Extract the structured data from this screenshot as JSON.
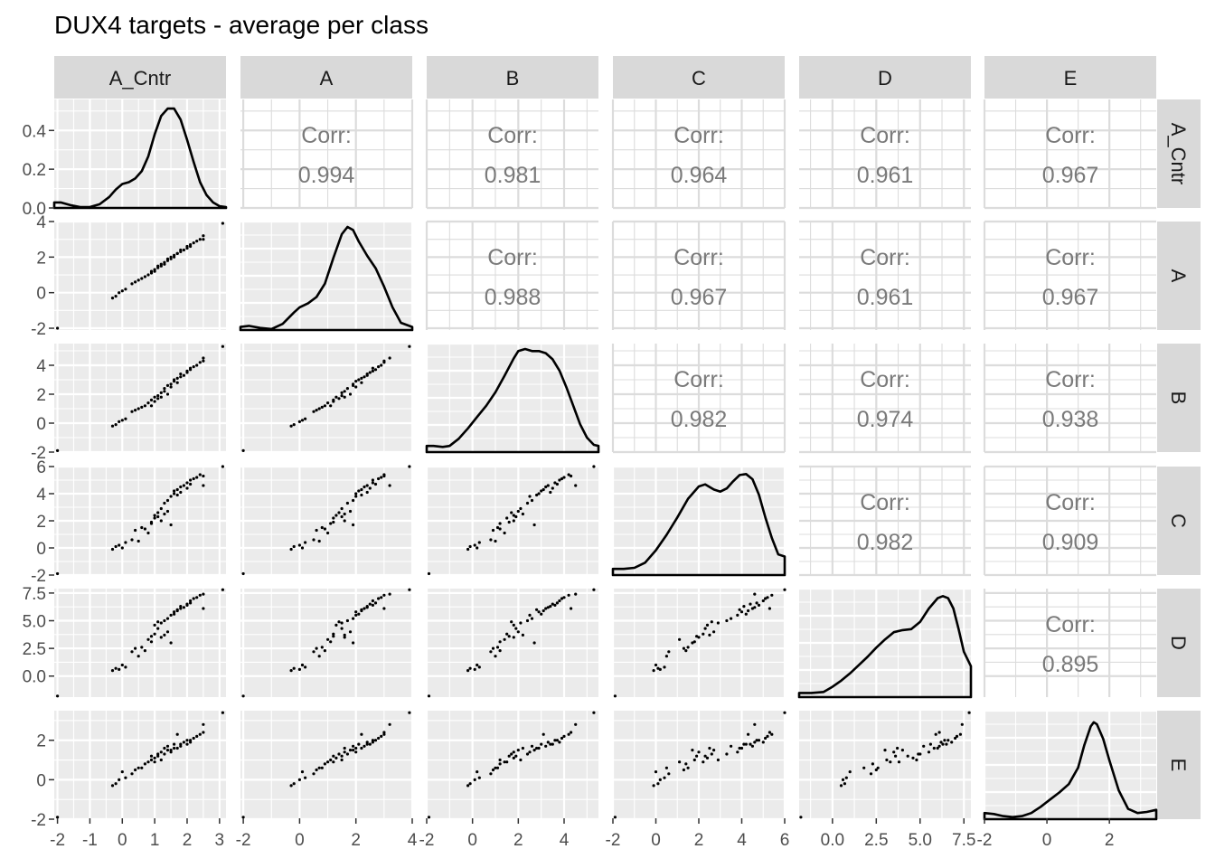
{
  "chart_data": {
    "type": "scatter",
    "title": "DUX4 targets - average per class",
    "variables": [
      "A_Cntr",
      "A",
      "B",
      "C",
      "D",
      "E"
    ],
    "colors": {
      "panel": "#ebebeb",
      "strip": "#d9d9d9",
      "grid": "#ffffff",
      "corr_text": "#7a7a7a",
      "ink": "#000000",
      "tick_text": "#4d4d4d"
    },
    "corr_label": "Corr:",
    "correlations": [
      {
        "row": "A_Cntr",
        "col": "A",
        "value": "0.994"
      },
      {
        "row": "A_Cntr",
        "col": "B",
        "value": "0.981"
      },
      {
        "row": "A_Cntr",
        "col": "C",
        "value": "0.964"
      },
      {
        "row": "A_Cntr",
        "col": "D",
        "value": "0.961"
      },
      {
        "row": "A_Cntr",
        "col": "E",
        "value": "0.967"
      },
      {
        "row": "A",
        "col": "B",
        "value": "0.988"
      },
      {
        "row": "A",
        "col": "C",
        "value": "0.967"
      },
      {
        "row": "A",
        "col": "D",
        "value": "0.961"
      },
      {
        "row": "A",
        "col": "E",
        "value": "0.967"
      },
      {
        "row": "B",
        "col": "C",
        "value": "0.982"
      },
      {
        "row": "B",
        "col": "D",
        "value": "0.974"
      },
      {
        "row": "B",
        "col": "E",
        "value": "0.938"
      },
      {
        "row": "C",
        "col": "D",
        "value": "0.982"
      },
      {
        "row": "C",
        "col": "E",
        "value": "0.909"
      },
      {
        "row": "D",
        "col": "E",
        "value": "0.895"
      }
    ],
    "x_axes": [
      {
        "var": "A_Cntr",
        "range": [
          -2.1,
          3.2
        ],
        "ticks": [
          -2,
          -1,
          0,
          1,
          2,
          3
        ],
        "labels": [
          "-2",
          "-1",
          "0",
          "1",
          "2",
          "3"
        ]
      },
      {
        "var": "A",
        "range": [
          -2.1,
          4.0
        ],
        "ticks": [
          -2,
          0,
          2,
          4
        ],
        "labels": [
          "-2",
          "0",
          "2",
          "4"
        ]
      },
      {
        "var": "B",
        "range": [
          -2.0,
          5.5
        ],
        "ticks": [
          -2,
          0,
          2,
          4
        ],
        "labels": [
          "-2",
          "0",
          "2",
          "4"
        ]
      },
      {
        "var": "C",
        "range": [
          -2.0,
          6.0
        ],
        "ticks": [
          -2,
          0,
          2,
          4,
          6
        ],
        "labels": [
          "-2",
          "0",
          "2",
          "4",
          "6"
        ]
      },
      {
        "var": "D",
        "range": [
          -1.9,
          7.9
        ],
        "ticks": [
          0,
          2.5,
          5,
          7.5
        ],
        "labels": [
          "0.0",
          "2.5",
          "5.0",
          "7.5"
        ]
      },
      {
        "var": "E",
        "range": [
          -2.0,
          3.5
        ],
        "ticks": [
          -2,
          0,
          2
        ],
        "labels": [
          "-2",
          "0",
          "2"
        ]
      }
    ],
    "y_axes": [
      {
        "var": "A_Cntr",
        "range": [
          0,
          0.56
        ],
        "ticks": [
          0,
          0.2,
          0.4
        ],
        "labels": [
          "0.0",
          "0.2",
          "0.4"
        ],
        "density_axis": true
      },
      {
        "var": "A",
        "range": [
          -2.1,
          4.0
        ],
        "ticks": [
          -2,
          0,
          2,
          4
        ],
        "labels": [
          "-2",
          "0",
          "2",
          "4"
        ]
      },
      {
        "var": "B",
        "range": [
          -2.0,
          5.5
        ],
        "ticks": [
          -2,
          0,
          2,
          4
        ],
        "labels": [
          "-2",
          "0",
          "2",
          "4"
        ]
      },
      {
        "var": "C",
        "range": [
          -2.0,
          6.0
        ],
        "ticks": [
          -2,
          0,
          2,
          4,
          6
        ],
        "labels": [
          "-2",
          "0",
          "2",
          "4",
          "6"
        ]
      },
      {
        "var": "D",
        "range": [
          -1.9,
          7.9
        ],
        "ticks": [
          0,
          2.5,
          5,
          7.5
        ],
        "labels": [
          "0.0",
          "2.5",
          "5.0",
          "7.5"
        ]
      },
      {
        "var": "E",
        "range": [
          -2.0,
          3.5
        ],
        "ticks": [
          -2,
          0,
          2
        ],
        "labels": [
          "-2",
          "0",
          "2"
        ]
      }
    ],
    "densities": [
      {
        "var": "A_Cntr",
        "x": [
          -2.1,
          -1.9,
          -1.6,
          -1.3,
          -1.0,
          -0.7,
          -0.4,
          -0.2,
          0.0,
          0.2,
          0.4,
          0.6,
          0.8,
          1.0,
          1.2,
          1.4,
          1.6,
          1.8,
          2.0,
          2.2,
          2.4,
          2.6,
          2.8,
          3.0,
          3.2
        ],
        "y": [
          0.03,
          0.03,
          0.015,
          0.005,
          0.005,
          0.02,
          0.06,
          0.1,
          0.13,
          0.14,
          0.16,
          0.2,
          0.28,
          0.4,
          0.5,
          0.54,
          0.54,
          0.48,
          0.37,
          0.25,
          0.14,
          0.07,
          0.03,
          0.01,
          0.005
        ],
        "ymax": 0.56
      },
      {
        "var": "A",
        "x": [
          -2.1,
          -1.8,
          -1.4,
          -1.0,
          -0.6,
          -0.2,
          0.0,
          0.3,
          0.6,
          0.9,
          1.2,
          1.5,
          1.7,
          1.9,
          2.1,
          2.4,
          2.7,
          3.0,
          3.3,
          3.6,
          4.0
        ],
        "y": [
          0.03,
          0.04,
          0.02,
          0.01,
          0.06,
          0.17,
          0.22,
          0.26,
          0.32,
          0.45,
          0.7,
          0.93,
          1.0,
          0.97,
          0.86,
          0.72,
          0.6,
          0.42,
          0.22,
          0.07,
          0.03
        ],
        "ymax": 1.0
      },
      {
        "var": "B",
        "x": [
          -2.0,
          -1.7,
          -1.3,
          -1.0,
          -0.6,
          -0.2,
          0.2,
          0.6,
          1.0,
          1.4,
          1.8,
          2.0,
          2.3,
          2.6,
          2.9,
          3.2,
          3.5,
          3.8,
          4.1,
          4.4,
          4.7,
          5.0,
          5.3,
          5.5
        ],
        "y": [
          0.06,
          0.06,
          0.05,
          0.06,
          0.13,
          0.23,
          0.34,
          0.45,
          0.58,
          0.74,
          0.91,
          0.98,
          1.0,
          0.98,
          0.98,
          0.96,
          0.9,
          0.79,
          0.63,
          0.45,
          0.27,
          0.14,
          0.07,
          0.06
        ],
        "ymax": 1.0
      },
      {
        "var": "C",
        "x": [
          -2.0,
          -1.5,
          -1.0,
          -0.5,
          0.0,
          0.5,
          1.0,
          1.5,
          2.0,
          2.3,
          2.7,
          3.0,
          3.3,
          3.6,
          3.9,
          4.2,
          4.5,
          4.8,
          5.1,
          5.4,
          5.7,
          6.0
        ],
        "y": [
          0.06,
          0.06,
          0.07,
          0.12,
          0.24,
          0.39,
          0.56,
          0.74,
          0.86,
          0.88,
          0.83,
          0.81,
          0.84,
          0.91,
          0.97,
          0.98,
          0.93,
          0.78,
          0.56,
          0.36,
          0.2,
          0.18
        ],
        "ymax": 1.0
      },
      {
        "var": "D",
        "x": [
          -1.9,
          -1.2,
          -0.5,
          0.0,
          0.5,
          1.0,
          1.5,
          2.0,
          2.5,
          3.0,
          3.5,
          4.0,
          4.5,
          5.0,
          5.5,
          6.0,
          6.3,
          6.6,
          6.9,
          7.2,
          7.5,
          7.9
        ],
        "y": [
          0.04,
          0.04,
          0.05,
          0.1,
          0.16,
          0.23,
          0.31,
          0.39,
          0.48,
          0.56,
          0.63,
          0.65,
          0.66,
          0.73,
          0.86,
          0.96,
          0.98,
          0.96,
          0.86,
          0.66,
          0.44,
          0.3
        ],
        "ymax": 1.0
      },
      {
        "var": "E",
        "x": [
          -2.0,
          -1.7,
          -1.4,
          -1.1,
          -0.8,
          -0.5,
          -0.2,
          0.1,
          0.4,
          0.7,
          1.0,
          1.2,
          1.4,
          1.5,
          1.6,
          1.8,
          2.0,
          2.3,
          2.6,
          2.9,
          3.2,
          3.5
        ],
        "y": [
          0.06,
          0.05,
          0.03,
          0.02,
          0.03,
          0.06,
          0.12,
          0.19,
          0.26,
          0.34,
          0.5,
          0.72,
          0.9,
          0.94,
          0.92,
          0.78,
          0.57,
          0.28,
          0.1,
          0.06,
          0.07,
          0.09
        ],
        "ymax": 1.0
      }
    ],
    "observations": [
      {
        "A_Cntr": -2.0,
        "A": -2.0,
        "B": -1.9,
        "C": -1.9,
        "D": -1.8,
        "E": -1.9
      },
      {
        "A_Cntr": -0.3,
        "A": -0.3,
        "B": -0.2,
        "C": -0.1,
        "D": 0.5,
        "E": -0.3
      },
      {
        "A_Cntr": -0.2,
        "A": -0.2,
        "B": -0.1,
        "C": 0.1,
        "D": 0.7,
        "E": -0.2
      },
      {
        "A_Cntr": -0.1,
        "A": 0.0,
        "B": 0.1,
        "C": 0.2,
        "D": 0.6,
        "E": 0.0
      },
      {
        "A_Cntr": 0.0,
        "A": 0.1,
        "B": 0.2,
        "C": 0.0,
        "D": 1.0,
        "E": 0.4
      },
      {
        "A_Cntr": 0.1,
        "A": 0.2,
        "B": 0.3,
        "C": 0.4,
        "D": 0.8,
        "E": 0.1
      },
      {
        "A_Cntr": 0.3,
        "A": 0.5,
        "B": 0.8,
        "C": 0.6,
        "D": 2.2,
        "E": 0.3
      },
      {
        "A_Cntr": 0.4,
        "A": 0.6,
        "B": 0.9,
        "C": 1.3,
        "D": 2.5,
        "E": 0.5
      },
      {
        "A_Cntr": 0.5,
        "A": 0.7,
        "B": 1.0,
        "C": 0.5,
        "D": 1.8,
        "E": 0.6
      },
      {
        "A_Cntr": 0.6,
        "A": 0.8,
        "B": 1.1,
        "C": 1.5,
        "D": 2.6,
        "E": 0.6
      },
      {
        "A_Cntr": 0.7,
        "A": 0.9,
        "B": 1.2,
        "C": 1.4,
        "D": 2.3,
        "E": 0.8
      },
      {
        "A_Cntr": 0.8,
        "A": 1.0,
        "B": 1.4,
        "C": 1.1,
        "D": 3.3,
        "E": 0.9
      },
      {
        "A_Cntr": 0.9,
        "A": 1.1,
        "B": 1.2,
        "C": 1.8,
        "D": 3.1,
        "E": 1.0
      },
      {
        "A_Cntr": 0.9,
        "A": 1.2,
        "B": 1.6,
        "C": 1.9,
        "D": 3.6,
        "E": 1.2
      },
      {
        "A_Cntr": 1.0,
        "A": 1.2,
        "B": 1.5,
        "C": 2.2,
        "D": 3.8,
        "E": 0.9
      },
      {
        "A_Cntr": 1.0,
        "A": 1.3,
        "B": 1.8,
        "C": 2.4,
        "D": 4.6,
        "E": 1.1
      },
      {
        "A_Cntr": 1.1,
        "A": 1.4,
        "B": 1.7,
        "C": 2.6,
        "D": 4.9,
        "E": 1.3
      },
      {
        "A_Cntr": 1.1,
        "A": 1.5,
        "B": 1.9,
        "C": 2.3,
        "D": 4.3,
        "E": 1.2
      },
      {
        "A_Cntr": 1.2,
        "A": 1.5,
        "B": 2.1,
        "C": 2.9,
        "D": 4.8,
        "E": 1.0
      },
      {
        "A_Cntr": 1.2,
        "A": 1.6,
        "B": 1.8,
        "C": 2.0,
        "D": 3.5,
        "E": 1.4
      },
      {
        "A_Cntr": 1.3,
        "A": 1.6,
        "B": 2.2,
        "C": 2.5,
        "D": 3.7,
        "E": 1.6
      },
      {
        "A_Cntr": 1.3,
        "A": 1.7,
        "B": 2.4,
        "C": 3.3,
        "D": 5.0,
        "E": 1.3
      },
      {
        "A_Cntr": 1.4,
        "A": 1.8,
        "B": 2.0,
        "C": 2.7,
        "D": 4.0,
        "E": 1.5
      },
      {
        "A_Cntr": 1.4,
        "A": 1.9,
        "B": 2.6,
        "C": 3.5,
        "D": 5.2,
        "E": 1.7
      },
      {
        "A_Cntr": 1.5,
        "A": 1.9,
        "B": 2.7,
        "C": 1.7,
        "D": 3.0,
        "E": 1.5
      },
      {
        "A_Cntr": 1.5,
        "A": 2.0,
        "B": 2.5,
        "C": 3.8,
        "D": 5.5,
        "E": 1.4
      },
      {
        "A_Cntr": 1.6,
        "A": 2.0,
        "B": 2.9,
        "C": 4.0,
        "D": 5.8,
        "E": 1.6
      },
      {
        "A_Cntr": 1.6,
        "A": 2.1,
        "B": 3.0,
        "C": 4.2,
        "D": 5.6,
        "E": 1.8
      },
      {
        "A_Cntr": 1.7,
        "A": 2.2,
        "B": 2.8,
        "C": 3.9,
        "D": 6.0,
        "E": 1.6
      },
      {
        "A_Cntr": 1.7,
        "A": 2.2,
        "B": 3.1,
        "C": 4.3,
        "D": 5.9,
        "E": 2.3
      },
      {
        "A_Cntr": 1.8,
        "A": 2.3,
        "B": 3.2,
        "C": 4.5,
        "D": 6.1,
        "E": 1.7
      },
      {
        "A_Cntr": 1.8,
        "A": 2.4,
        "B": 3.4,
        "C": 4.1,
        "D": 6.3,
        "E": 1.8
      },
      {
        "A_Cntr": 1.9,
        "A": 2.4,
        "B": 3.3,
        "C": 4.6,
        "D": 6.2,
        "E": 1.9
      },
      {
        "A_Cntr": 2.0,
        "A": 2.5,
        "B": 3.5,
        "C": 4.4,
        "D": 6.5,
        "E": 1.8
      },
      {
        "A_Cntr": 2.0,
        "A": 2.6,
        "B": 3.6,
        "C": 4.8,
        "D": 6.4,
        "E": 2.0
      },
      {
        "A_Cntr": 2.1,
        "A": 2.6,
        "B": 3.8,
        "C": 5.0,
        "D": 6.8,
        "E": 1.9
      },
      {
        "A_Cntr": 2.1,
        "A": 2.7,
        "B": 3.7,
        "C": 4.7,
        "D": 6.6,
        "E": 2.0
      },
      {
        "A_Cntr": 2.2,
        "A": 2.8,
        "B": 3.9,
        "C": 5.1,
        "D": 7.0,
        "E": 2.1
      },
      {
        "A_Cntr": 2.3,
        "A": 2.9,
        "B": 4.0,
        "C": 5.2,
        "D": 7.1,
        "E": 2.2
      },
      {
        "A_Cntr": 2.4,
        "A": 3.0,
        "B": 4.2,
        "C": 5.4,
        "D": 7.3,
        "E": 2.3
      },
      {
        "A_Cntr": 2.5,
        "A": 3.0,
        "B": 4.3,
        "C": 5.3,
        "D": 6.1,
        "E": 2.4
      },
      {
        "A_Cntr": 2.5,
        "A": 3.2,
        "B": 4.5,
        "C": 4.6,
        "D": 7.4,
        "E": 2.8
      },
      {
        "A_Cntr": 3.1,
        "A": 3.9,
        "B": 5.3,
        "C": 6.0,
        "D": 7.8,
        "E": 3.4
      }
    ]
  }
}
